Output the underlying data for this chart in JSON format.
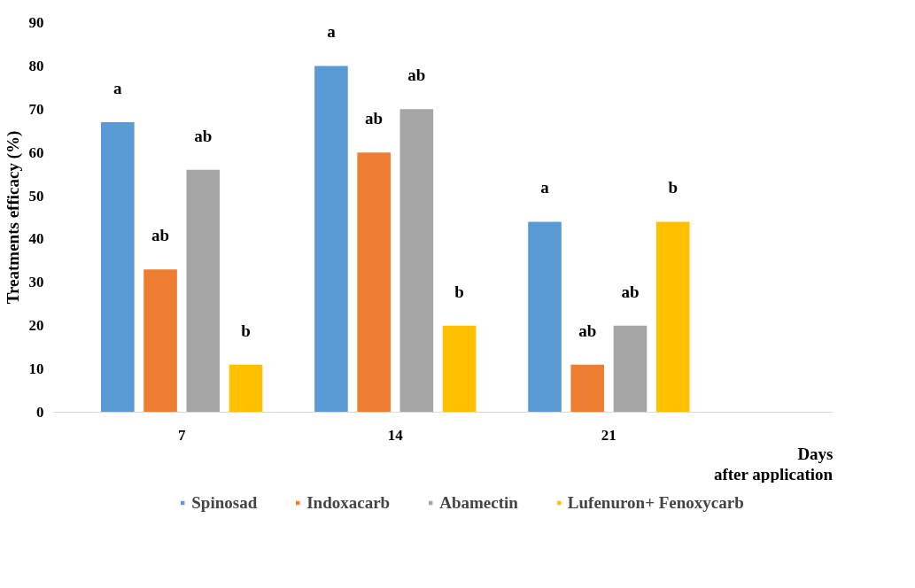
{
  "chart_data": {
    "type": "bar",
    "categories": [
      "7",
      "14",
      "21"
    ],
    "xlabel": "Days\nafter application",
    "ylabel": "Treatments efficacy (%)",
    "ylim": [
      0,
      90
    ],
    "yticks": [
      0,
      10,
      20,
      30,
      40,
      50,
      60,
      70,
      80,
      90
    ],
    "grid": false,
    "legend": "bottom",
    "series": [
      {
        "name": "Spinosad",
        "color": "#5b9bd5",
        "values": [
          67,
          80,
          44
        ],
        "value_labels": [
          "a",
          "a",
          "a"
        ]
      },
      {
        "name": "Indoxacarb",
        "color": "#ed7d31",
        "values": [
          33,
          60,
          11
        ],
        "value_labels": [
          "ab",
          "ab",
          "ab"
        ]
      },
      {
        "name": "Abamectin",
        "color": "#a5a5a5",
        "values": [
          56,
          70,
          20
        ],
        "value_labels": [
          "ab",
          "ab",
          "ab"
        ]
      },
      {
        "name": "Lufenuron+ Fenoxycarb",
        "color": "#ffc000",
        "values": [
          11,
          20,
          44
        ],
        "value_labels": [
          "b",
          "b",
          "b"
        ]
      }
    ]
  }
}
